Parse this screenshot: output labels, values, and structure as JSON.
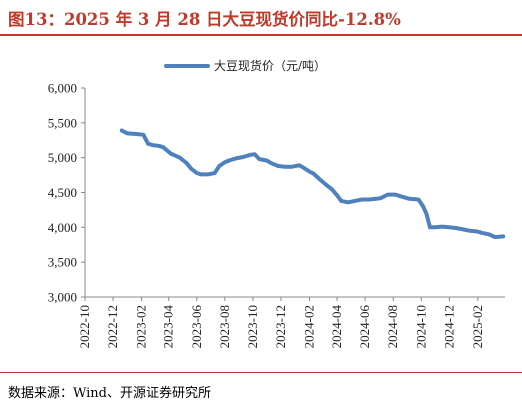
{
  "figure": {
    "title": "图13：2025 年 3 月 28 日大豆现货价同比-12.8%",
    "source": "数据来源：Wind、开源证券研究所",
    "title_color": "#c0392b"
  },
  "chart_data": {
    "type": "line",
    "title": "",
    "xlabel": "",
    "ylabel": "",
    "ylim": [
      3000,
      6000
    ],
    "yticks": [
      "3,000",
      "3,500",
      "4,000",
      "4,500",
      "5,000",
      "5,500",
      "6,000"
    ],
    "xlim": [
      "2022-10-01",
      "2025-04-01"
    ],
    "xticks": [
      "2022-10",
      "2022-12",
      "2023-02",
      "2023-04",
      "2023-06",
      "2023-08",
      "2023-10",
      "2023-12",
      "2024-02",
      "2024-04",
      "2024-06",
      "2024-08",
      "2024-10",
      "2024-12",
      "2025-02"
    ],
    "grid": false,
    "legend": "top-center",
    "series": [
      {
        "name": "大豆现货价（元/吨）",
        "color": "#4f81bd",
        "x": [
          "2022-12-20",
          "2022-12-31",
          "2023-01-20",
          "2023-02-05",
          "2023-02-15",
          "2023-02-25",
          "2023-03-10",
          "2023-03-20",
          "2023-04-05",
          "2023-04-15",
          "2023-04-25",
          "2023-05-10",
          "2023-05-20",
          "2023-06-01",
          "2023-06-10",
          "2023-06-25",
          "2023-07-10",
          "2023-07-20",
          "2023-07-31",
          "2023-08-10",
          "2023-08-25",
          "2023-09-10",
          "2023-09-25",
          "2023-10-05",
          "2023-10-15",
          "2023-10-31",
          "2023-11-10",
          "2023-11-25",
          "2023-12-10",
          "2023-12-25",
          "2024-01-10",
          "2024-01-20",
          "2024-02-01",
          "2024-02-10",
          "2024-02-25",
          "2024-03-10",
          "2024-03-20",
          "2024-04-01",
          "2024-04-10",
          "2024-04-25",
          "2024-05-10",
          "2024-05-25",
          "2024-06-10",
          "2024-06-25",
          "2024-07-05",
          "2024-07-20",
          "2024-08-05",
          "2024-08-20",
          "2024-09-05",
          "2024-09-25",
          "2024-10-05",
          "2024-10-12",
          "2024-10-20",
          "2024-10-31",
          "2024-11-15",
          "2024-11-30",
          "2024-12-15",
          "2024-12-31",
          "2025-01-15",
          "2025-01-31",
          "2025-02-10",
          "2025-02-25",
          "2025-03-10",
          "2025-03-28"
        ],
        "values": [
          5390,
          5350,
          5340,
          5330,
          5200,
          5180,
          5170,
          5150,
          5060,
          5030,
          5000,
          4920,
          4840,
          4780,
          4760,
          4760,
          4780,
          4880,
          4930,
          4960,
          4990,
          5010,
          5040,
          5050,
          4980,
          4960,
          4920,
          4880,
          4870,
          4870,
          4890,
          4850,
          4800,
          4770,
          4680,
          4600,
          4550,
          4460,
          4380,
          4360,
          4380,
          4400,
          4400,
          4410,
          4420,
          4470,
          4470,
          4440,
          4410,
          4400,
          4300,
          4200,
          4000,
          4000,
          4010,
          4000,
          3990,
          3970,
          3950,
          3940,
          3920,
          3900,
          3860,
          3870
        ]
      }
    ]
  }
}
